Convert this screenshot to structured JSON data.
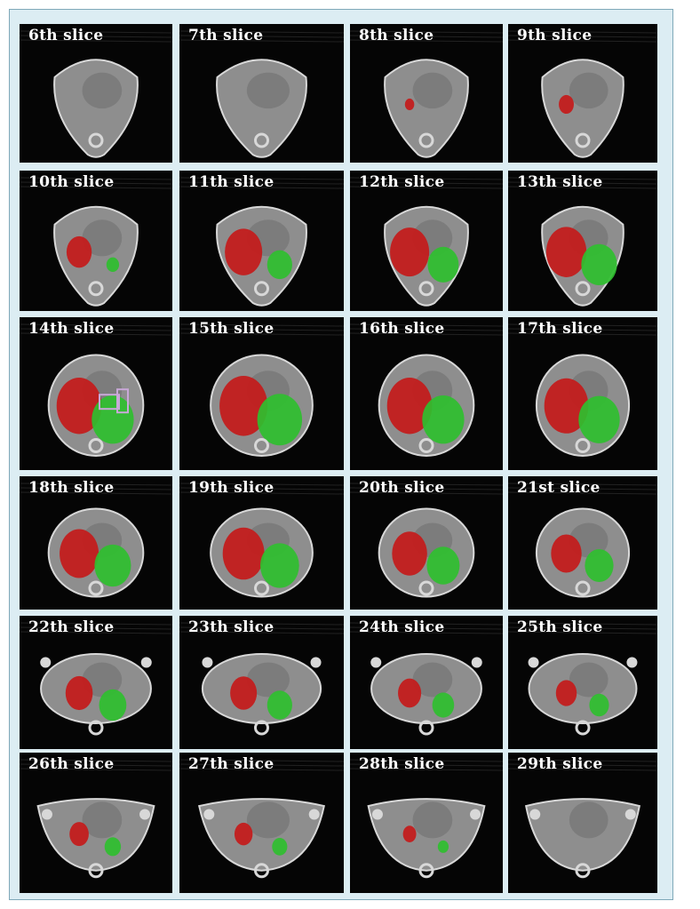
{
  "figure": {
    "slices": [
      {
        "label": "6th slice",
        "shape": "heart",
        "red": 0,
        "green": 0
      },
      {
        "label": "7th slice",
        "shape": "heart",
        "red": 0,
        "green": 0
      },
      {
        "label": "8th slice",
        "shape": "heart",
        "red": 0.1,
        "green": 0
      },
      {
        "label": "9th slice",
        "shape": "heart",
        "red": 0.25,
        "green": 0
      },
      {
        "label": "10th slice",
        "shape": "heart",
        "red": 0.5,
        "green": 0.2
      },
      {
        "label": "11th slice",
        "shape": "heart",
        "red": 0.75,
        "green": 0.5
      },
      {
        "label": "12th slice",
        "shape": "heart",
        "red": 0.85,
        "green": 0.7
      },
      {
        "label": "13th slice",
        "shape": "heart",
        "red": 0.9,
        "green": 0.85
      },
      {
        "label": "14th slice",
        "shape": "oval",
        "red": 1,
        "green": 1,
        "rois": true
      },
      {
        "label": "15th slice",
        "shape": "oval",
        "red": 1,
        "green": 1
      },
      {
        "label": "16th slice",
        "shape": "oval",
        "red": 1,
        "green": 1
      },
      {
        "label": "17th slice",
        "shape": "oval",
        "red": 1,
        "green": 1
      },
      {
        "label": "18th slice",
        "shape": "oval",
        "red": 0.85,
        "green": 0.85
      },
      {
        "label": "19th slice",
        "shape": "oval",
        "red": 0.85,
        "green": 0.85
      },
      {
        "label": "20th slice",
        "shape": "oval",
        "red": 0.75,
        "green": 0.75
      },
      {
        "label": "21st slice",
        "shape": "oval",
        "red": 0.65,
        "green": 0.65
      },
      {
        "label": "22th slice",
        "shape": "wide",
        "red": 0.55,
        "green": 0.6
      },
      {
        "label": "23th slice",
        "shape": "wide",
        "red": 0.5,
        "green": 0.5
      },
      {
        "label": "24th slice",
        "shape": "wide",
        "red": 0.45,
        "green": 0.45
      },
      {
        "label": "25th slice",
        "shape": "wide",
        "red": 0.4,
        "green": 0.4
      },
      {
        "label": "26th slice",
        "shape": "flat",
        "red": 0.35,
        "green": 0.3
      },
      {
        "label": "27th slice",
        "shape": "flat",
        "red": 0.3,
        "green": 0.25
      },
      {
        "label": "28th slice",
        "shape": "flat",
        "red": 0.2,
        "green": 0.15
      },
      {
        "label": "29th slice",
        "shape": "flat",
        "red": 0,
        "green": 0
      }
    ],
    "colors": {
      "background": "#050505",
      "tissue": "#8e8e8e",
      "bone": "#d8d8d8",
      "red_region": "#c41a1a",
      "green_region": "#2fbf2f",
      "roi": "#c9a8d8"
    }
  }
}
